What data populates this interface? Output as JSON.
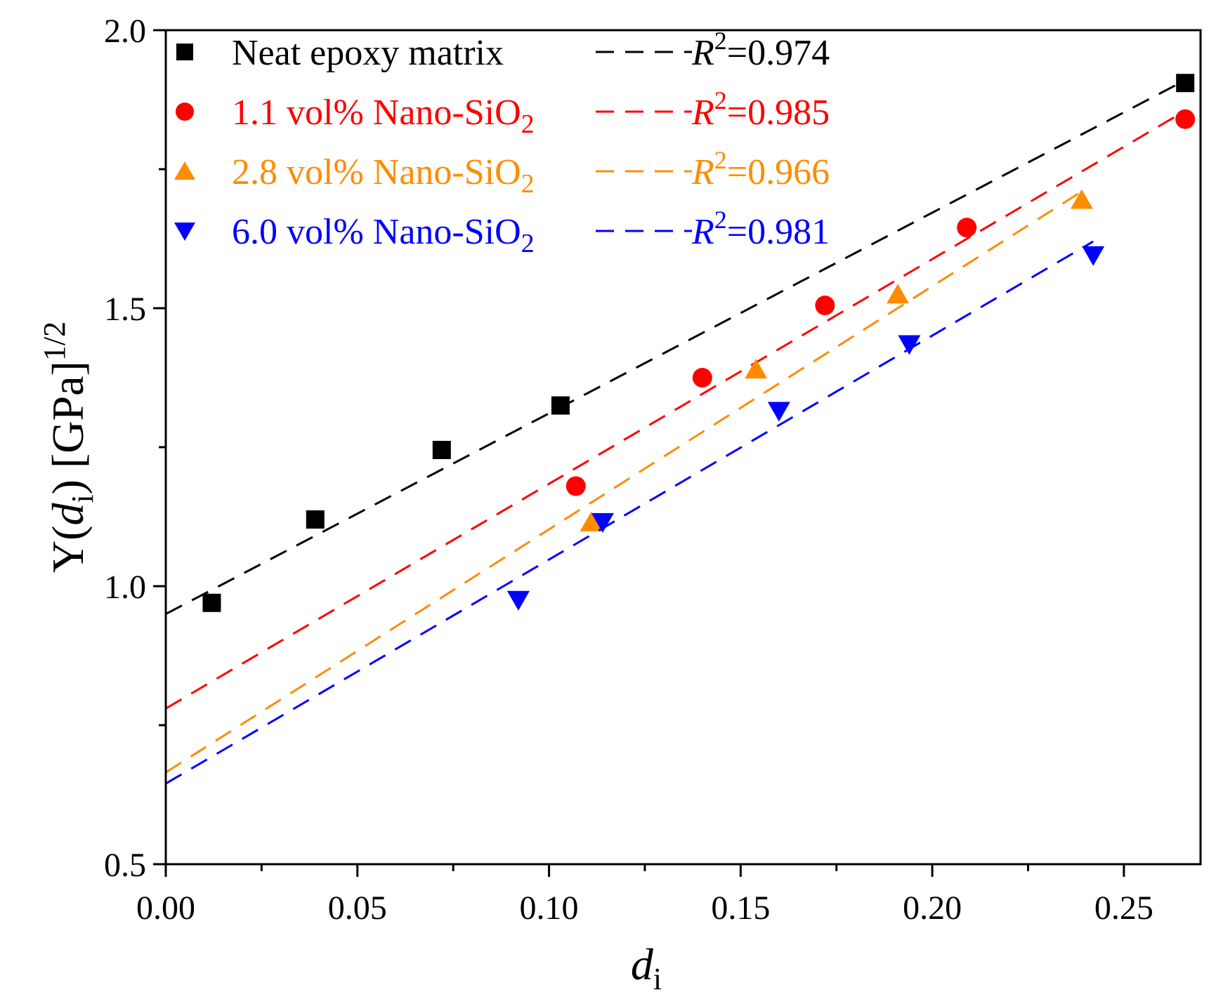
{
  "chart_data": {
    "type": "scatter",
    "title": "",
    "xlabel": "d",
    "xlabel_sub": "i",
    "ylabel_prefix": "Y(",
    "ylabel_var": "d",
    "ylabel_sub": "i",
    "ylabel_suffix": ") [GPa]",
    "ylabel_sup": "1/2",
    "xlim": [
      0,
      0.27
    ],
    "ylim": [
      0.5,
      2.0
    ],
    "x_ticks": [
      0.0,
      0.05,
      0.1,
      0.15,
      0.2,
      0.25
    ],
    "x_tick_labels": [
      "0.00",
      "0.05",
      "0.10",
      "0.15",
      "0.20",
      "0.25"
    ],
    "x_minor_ticks": [
      0.025,
      0.075,
      0.125,
      0.175,
      0.225
    ],
    "y_ticks": [
      0.5,
      1.0,
      1.5,
      2.0
    ],
    "y_tick_labels": [
      "0.5",
      "1.0",
      "1.5",
      "2.0"
    ],
    "y_minor_ticks": [
      0.75,
      1.25,
      1.75
    ],
    "grid": false,
    "legend_position": "top-left",
    "series": [
      {
        "name": "Neat epoxy matrix",
        "name_sub": "",
        "marker": "square",
        "color": "#000000",
        "fit_r2_label": "=0.974",
        "fit_line": {
          "x": [
            0.0,
            0.266
          ],
          "y": [
            0.95,
            1.91
          ]
        },
        "points": [
          {
            "x": 0.012,
            "y": 0.97
          },
          {
            "x": 0.039,
            "y": 1.12
          },
          {
            "x": 0.072,
            "y": 1.245
          },
          {
            "x": 0.103,
            "y": 1.325
          },
          {
            "x": 0.266,
            "y": 1.905
          }
        ]
      },
      {
        "name": "1.1 vol% Nano-SiO",
        "name_sub": "2",
        "marker": "circle",
        "color": "#ff0000",
        "fit_r2_label": "=0.985",
        "fit_line": {
          "x": [
            0.0,
            0.266
          ],
          "y": [
            0.78,
            1.855
          ]
        },
        "points": [
          {
            "x": 0.107,
            "y": 1.18
          },
          {
            "x": 0.14,
            "y": 1.375
          },
          {
            "x": 0.172,
            "y": 1.505
          },
          {
            "x": 0.209,
            "y": 1.645
          },
          {
            "x": 0.266,
            "y": 1.84
          }
        ]
      },
      {
        "name": "2.8 vol% Nano-SiO",
        "name_sub": "2",
        "marker": "triangle-up",
        "color": "#ff8c00",
        "fit_r2_label": "=0.966",
        "fit_line": {
          "x": [
            0.0,
            0.239
          ],
          "y": [
            0.665,
            1.71
          ]
        },
        "points": [
          {
            "x": 0.111,
            "y": 1.115
          },
          {
            "x": 0.154,
            "y": 1.39
          },
          {
            "x": 0.191,
            "y": 1.525
          },
          {
            "x": 0.239,
            "y": 1.695
          }
        ]
      },
      {
        "name": "6.0 vol% Nano-SiO",
        "name_sub": "2",
        "marker": "triangle-down",
        "color": "#0000ff",
        "fit_r2_label": "=0.981",
        "fit_line": {
          "x": [
            0.0,
            0.242
          ],
          "y": [
            0.645,
            1.62
          ]
        },
        "points": [
          {
            "x": 0.092,
            "y": 0.975
          },
          {
            "x": 0.114,
            "y": 1.115
          },
          {
            "x": 0.16,
            "y": 1.315
          },
          {
            "x": 0.194,
            "y": 1.435
          },
          {
            "x": 0.242,
            "y": 1.595
          }
        ]
      }
    ]
  }
}
